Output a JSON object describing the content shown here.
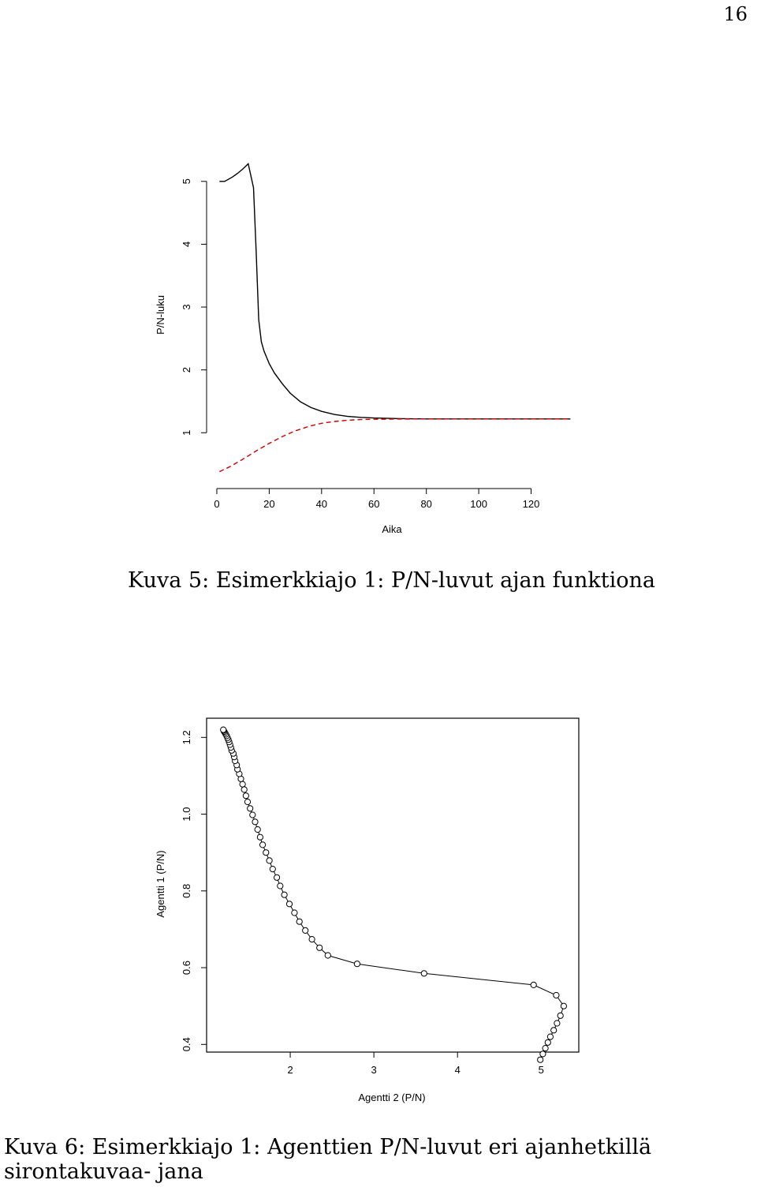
{
  "page_number": "16",
  "captions": {
    "figure5": "Kuva 5: Esimerkkiajo 1: P/N-luvut ajan funktiona",
    "figure6": "Kuva 6: Esimerkkiajo 1: Agenttien P/N-luvut eri ajanhetkillä sirontakuvaa- jana"
  },
  "chart_data": [
    {
      "type": "line",
      "xlabel": "Aika",
      "ylabel": "P/N-luku",
      "x_ticks": [
        0,
        20,
        40,
        60,
        80,
        100,
        120
      ],
      "y_ticks": [
        1,
        2,
        3,
        4,
        5
      ],
      "xlim": [
        -3,
        137
      ],
      "ylim": [
        0.25,
        5.5
      ],
      "grid": false,
      "colors": {
        "series_1": "#000000",
        "series_2": "#cc0000"
      },
      "series": [
        {
          "style": "solid",
          "x": [
            1,
            3,
            6,
            8,
            10,
            12,
            14,
            15,
            16,
            17,
            18,
            20,
            22,
            25,
            28,
            32,
            36,
            40,
            45,
            50,
            55,
            60,
            70,
            80,
            100,
            120,
            135
          ],
          "y": [
            5.0,
            5.0,
            5.07,
            5.13,
            5.2,
            5.28,
            4.9,
            3.9,
            2.8,
            2.45,
            2.3,
            2.1,
            1.95,
            1.78,
            1.63,
            1.49,
            1.4,
            1.34,
            1.29,
            1.26,
            1.245,
            1.235,
            1.225,
            1.22,
            1.22,
            1.22,
            1.22
          ]
        },
        {
          "style": "dashed",
          "x": [
            1,
            5,
            10,
            15,
            20,
            25,
            30,
            35,
            40,
            45,
            50,
            55,
            60,
            70,
            80,
            100,
            120,
            135
          ],
          "y": [
            0.38,
            0.46,
            0.58,
            0.71,
            0.83,
            0.94,
            1.03,
            1.1,
            1.15,
            1.18,
            1.2,
            1.21,
            1.215,
            1.218,
            1.22,
            1.22,
            1.22,
            1.22
          ]
        }
      ]
    },
    {
      "type": "scatter",
      "connected": true,
      "marker": "open-circle",
      "xlabel": "Agentti 2 (P/N)",
      "ylabel": "Agentti 1 (P/N)",
      "x_ticks": [
        2,
        3,
        4,
        5
      ],
      "y_ticks": [
        "0.4",
        "0.6",
        "0.8",
        "1.0",
        "1.2"
      ],
      "xlim": [
        1.0,
        5.45
      ],
      "ylim": [
        0.38,
        1.25
      ],
      "grid": false,
      "points": [
        [
          4.99,
          0.36
        ],
        [
          5.02,
          0.375
        ],
        [
          5.05,
          0.39
        ],
        [
          5.08,
          0.405
        ],
        [
          5.11,
          0.42
        ],
        [
          5.15,
          0.437
        ],
        [
          5.19,
          0.455
        ],
        [
          5.23,
          0.475
        ],
        [
          5.27,
          0.5
        ],
        [
          5.18,
          0.528
        ],
        [
          4.91,
          0.555
        ],
        [
          3.6,
          0.585
        ],
        [
          2.8,
          0.61
        ],
        [
          2.45,
          0.632
        ],
        [
          2.35,
          0.652
        ],
        [
          2.26,
          0.674
        ],
        [
          2.18,
          0.697
        ],
        [
          2.11,
          0.72
        ],
        [
          2.05,
          0.743
        ],
        [
          1.99,
          0.766
        ],
        [
          1.93,
          0.79
        ],
        [
          1.88,
          0.813
        ],
        [
          1.84,
          0.835
        ],
        [
          1.79,
          0.857
        ],
        [
          1.75,
          0.879
        ],
        [
          1.71,
          0.9
        ],
        [
          1.67,
          0.92
        ],
        [
          1.64,
          0.94
        ],
        [
          1.61,
          0.96
        ],
        [
          1.58,
          0.98
        ],
        [
          1.55,
          0.998
        ],
        [
          1.52,
          1.015
        ],
        [
          1.49,
          1.032
        ],
        [
          1.47,
          1.048
        ],
        [
          1.45,
          1.064
        ],
        [
          1.43,
          1.078
        ],
        [
          1.41,
          1.092
        ],
        [
          1.39,
          1.105
        ],
        [
          1.37,
          1.117
        ],
        [
          1.36,
          1.128
        ],
        [
          1.34,
          1.139
        ],
        [
          1.33,
          1.149
        ],
        [
          1.32,
          1.158
        ],
        [
          1.3,
          1.166
        ],
        [
          1.29,
          1.174
        ],
        [
          1.28,
          1.181
        ],
        [
          1.27,
          1.188
        ],
        [
          1.26,
          1.194
        ],
        [
          1.25,
          1.199
        ],
        [
          1.24,
          1.204
        ],
        [
          1.23,
          1.208
        ],
        [
          1.22,
          1.212
        ],
        [
          1.21,
          1.215
        ],
        [
          1.205,
          1.218
        ],
        [
          1.2,
          1.22
        ]
      ]
    }
  ]
}
